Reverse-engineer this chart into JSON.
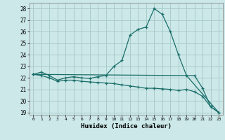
{
  "xlabel": "Humidex (Indice chaleur)",
  "background_color": "#cce8e8",
  "grid_color": "#aacccc",
  "line_color": "#1a6e6a",
  "xlim": [
    -0.5,
    23.5
  ],
  "ylim": [
    18.8,
    28.5
  ],
  "yticks": [
    19,
    20,
    21,
    22,
    23,
    24,
    25,
    26,
    27,
    28
  ],
  "xticks": [
    0,
    1,
    2,
    3,
    4,
    5,
    6,
    7,
    8,
    9,
    10,
    11,
    12,
    13,
    14,
    15,
    16,
    17,
    18,
    19,
    20,
    21,
    22,
    23
  ],
  "line1_x": [
    0,
    1,
    2,
    3,
    4,
    5,
    6,
    7,
    8,
    9,
    10,
    11,
    12,
    13,
    14,
    15,
    16,
    17,
    18,
    19,
    20,
    21,
    22,
    23
  ],
  "line1_y": [
    22.3,
    22.5,
    22.2,
    21.8,
    22.0,
    22.1,
    22.0,
    21.95,
    22.1,
    22.2,
    23.0,
    23.5,
    25.7,
    26.2,
    26.4,
    28.0,
    27.5,
    26.0,
    24.0,
    22.2,
    22.2,
    21.1,
    19.5,
    19.0
  ],
  "line2_x": [
    0,
    1,
    2,
    3,
    4,
    5,
    6,
    7,
    8,
    9,
    10,
    11,
    12,
    13,
    14,
    15,
    16,
    17,
    18,
    19,
    20,
    21,
    22,
    23
  ],
  "line2_y": [
    22.3,
    22.2,
    22.0,
    21.7,
    21.8,
    21.8,
    21.7,
    21.65,
    21.6,
    21.55,
    21.5,
    21.4,
    21.3,
    21.2,
    21.1,
    21.1,
    21.05,
    21.0,
    20.9,
    21.0,
    20.8,
    20.4,
    19.5,
    19.0
  ],
  "line3_x": [
    0,
    19,
    23
  ],
  "line3_y": [
    22.3,
    22.2,
    19.0
  ]
}
